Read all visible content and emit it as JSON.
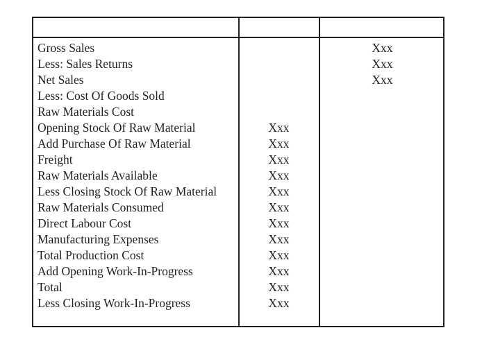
{
  "table": {
    "header": [
      "",
      "",
      ""
    ],
    "rows": [
      {
        "label": "Gross Sales",
        "mid": "",
        "right": "Xxx"
      },
      {
        "label": "Less: Sales Returns",
        "mid": "",
        "right": "Xxx"
      },
      {
        "label": "Net Sales",
        "mid": "",
        "right": "Xxx"
      },
      {
        "label": "Less: Cost Of Goods Sold",
        "mid": "",
        "right": ""
      },
      {
        "label": "Raw Materials Cost",
        "mid": "",
        "right": ""
      },
      {
        "label": "Opening Stock Of Raw Material",
        "mid": "Xxx",
        "right": ""
      },
      {
        "label": "Add Purchase Of Raw Material",
        "mid": "Xxx",
        "right": ""
      },
      {
        "label": "Freight",
        "mid": "Xxx",
        "right": ""
      },
      {
        "label": "Raw Materials Available",
        "mid": "Xxx",
        "right": ""
      },
      {
        "label": "Less Closing Stock Of Raw Material",
        "mid": "Xxx",
        "right": ""
      },
      {
        "label": "Raw Materials Consumed",
        "mid": "Xxx",
        "right": ""
      },
      {
        "label": "Direct Labour Cost",
        "mid": "Xxx",
        "right": ""
      },
      {
        "label": "Manufacturing Expenses",
        "mid": "Xxx",
        "right": ""
      },
      {
        "label": "Total Production Cost",
        "mid": "Xxx",
        "right": ""
      },
      {
        "label": "Add Opening Work-In-Progress",
        "mid": "Xxx",
        "right": ""
      },
      {
        "label": "Total",
        "mid": "Xxx",
        "right": ""
      },
      {
        "label": "Less Closing Work-In-Progress",
        "mid": "Xxx",
        "right": ""
      }
    ]
  }
}
